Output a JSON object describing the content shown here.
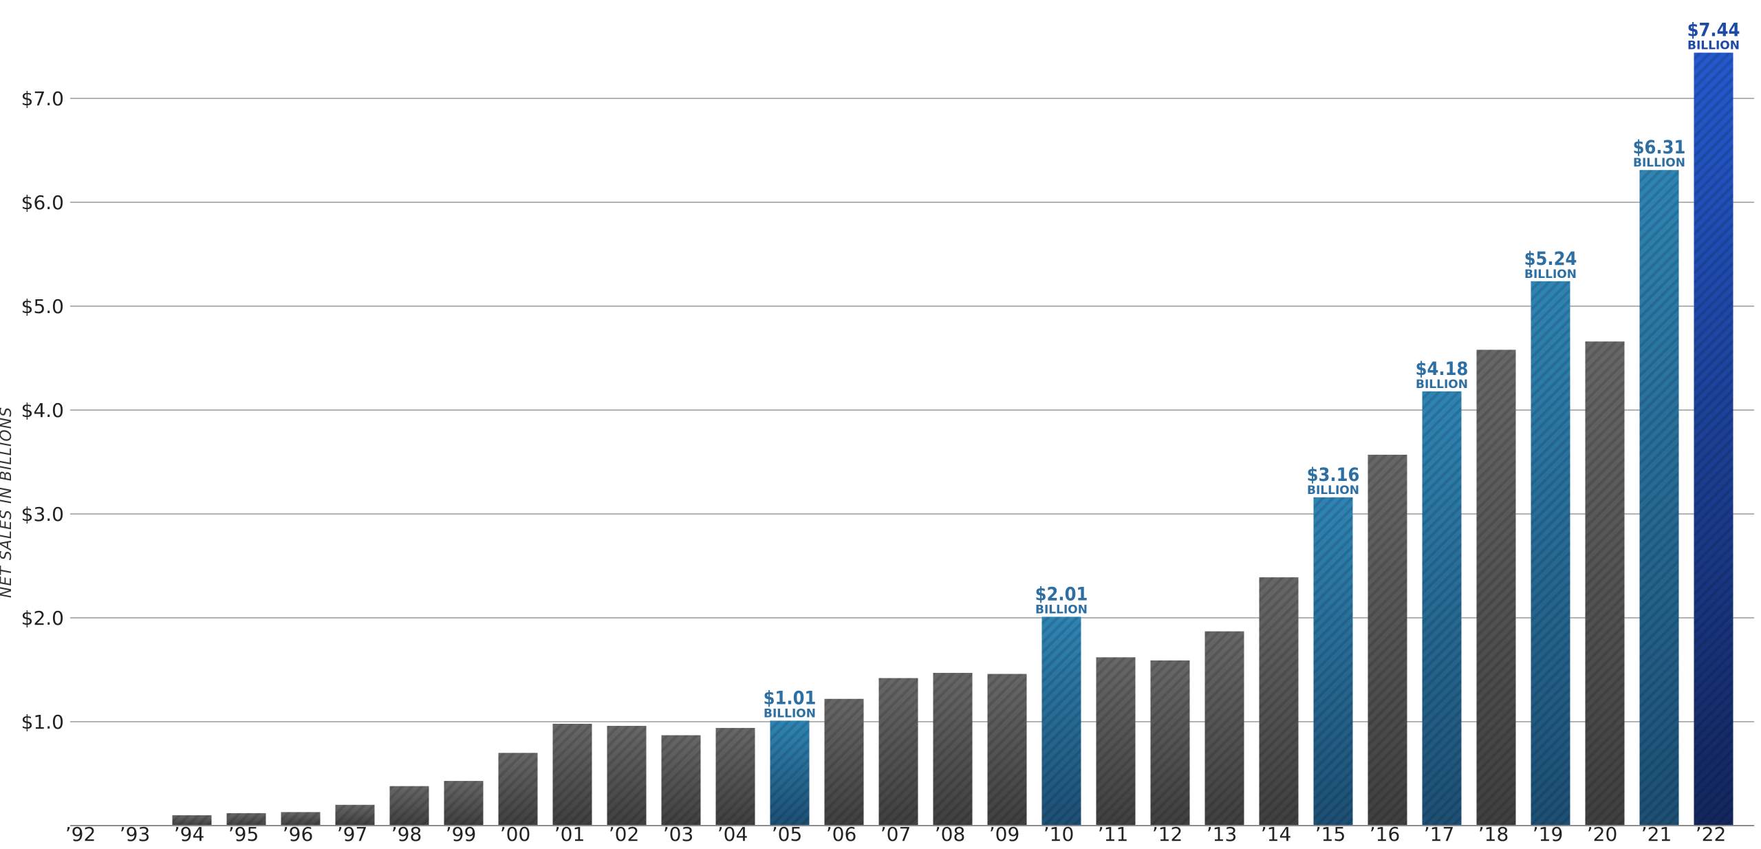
{
  "chart_data": {
    "type": "bar",
    "title": "",
    "xlabel": "",
    "ylabel": "NET SALES IN BILLIONS",
    "ylim": [
      0,
      7.6
    ],
    "grid": true,
    "y_ticks": [
      {
        "value": 1.0,
        "label": "$1.0"
      },
      {
        "value": 2.0,
        "label": "$2.0"
      },
      {
        "value": 3.0,
        "label": "$3.0"
      },
      {
        "value": 4.0,
        "label": "$4.0"
      },
      {
        "value": 5.0,
        "label": "$5.0"
      },
      {
        "value": 6.0,
        "label": "$6.0"
      },
      {
        "value": 7.0,
        "label": "$7.0"
      }
    ],
    "categories": [
      "’92",
      "’93",
      "’94",
      "’95",
      "’96",
      "’97",
      "’98",
      "’99",
      "’00",
      "’01",
      "’02",
      "’03",
      "’04",
      "’05",
      "’06",
      "’07",
      "’08",
      "’09",
      "’10",
      "’11",
      "’12",
      "’13",
      "’14",
      "’15",
      "’16",
      "’17",
      "’18",
      "’19",
      "’20",
      "’21",
      "’22"
    ],
    "values": [
      0,
      0,
      0.1,
      0.12,
      0.13,
      0.2,
      0.38,
      0.43,
      0.7,
      0.98,
      0.96,
      0.87,
      0.94,
      1.01,
      1.22,
      1.42,
      1.47,
      1.46,
      2.01,
      1.62,
      1.59,
      1.87,
      2.39,
      3.16,
      3.57,
      4.18,
      4.58,
      5.24,
      4.66,
      6.31,
      7.44
    ],
    "colors": {
      "gray_top": "#676767",
      "gray_bottom": "#3f3f3f",
      "blue_top": "#2f84b4",
      "blue_bottom": "#1d4f74",
      "final_top": "#2459cc",
      "final_bottom": "#13265e",
      "label": "#2d6fa3",
      "final_label": "#1c4aa6",
      "grid": "#b3b3b3"
    },
    "highlights": [
      {
        "category": "’05",
        "value_label": "$1.01",
        "unit_label": "BILLION"
      },
      {
        "category": "’10",
        "value_label": "$2.01",
        "unit_label": "BILLION"
      },
      {
        "category": "’15",
        "value_label": "$3.16",
        "unit_label": "BILLION"
      },
      {
        "category": "’17",
        "value_label": "$4.18",
        "unit_label": "BILLION"
      },
      {
        "category": "’19",
        "value_label": "$5.24",
        "unit_label": "BILLION"
      },
      {
        "category": "’21",
        "value_label": "$6.31",
        "unit_label": "BILLION"
      },
      {
        "category": "’22",
        "value_label": "$7.44",
        "unit_label": "BILLION",
        "emphasis": "final"
      }
    ]
  }
}
